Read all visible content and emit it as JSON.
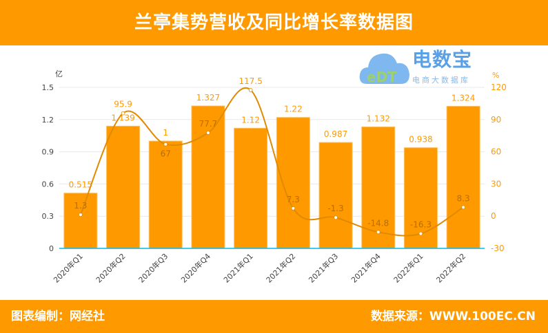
{
  "header": {
    "title": "兰亭集势营收及同比增长率数据图"
  },
  "footer": {
    "editor": "图表编制：网经社",
    "source": "数据来源：WWW.100EC.CN"
  },
  "logo": {
    "name": "电数宝",
    "subtitle": "电商大数据库",
    "mark": "eDT"
  },
  "colors": {
    "bar": "#ff9900",
    "line": "#e08a00",
    "axis": "#00b8f0",
    "header": "#ff9900"
  },
  "chart_data": {
    "type": "bar+line",
    "categories": [
      "2020年Q1",
      "2020年Q2",
      "2020年Q3",
      "2020年Q4",
      "2021年Q1",
      "2021年Q2",
      "2021年Q3",
      "2021年Q4",
      "2022年Q1",
      "2022年Q2"
    ],
    "series": [
      {
        "axis": "left",
        "type": "bar",
        "values": [
          0.515,
          1.139,
          1.0,
          1.327,
          1.12,
          1.22,
          0.987,
          1.132,
          0.938,
          1.324
        ],
        "labels": [
          "0.515",
          "1.139",
          "1",
          "1.327",
          "1.12",
          "1.22",
          "0.987",
          "1.132",
          "0.938",
          "1.324"
        ]
      },
      {
        "axis": "right",
        "type": "line",
        "values": [
          1.3,
          95.9,
          67,
          77.7,
          117.5,
          7.3,
          -1.3,
          -14.8,
          -16.3,
          8.3
        ]
      }
    ],
    "left_axis": {
      "unit": "亿",
      "ticks": [
        "0",
        "0.3",
        "0.6",
        "0.9",
        "1.2",
        "1.5"
      ],
      "range": [
        0,
        1.5
      ]
    },
    "right_axis": {
      "unit": "%",
      "ticks": [
        "-30",
        "0",
        "30",
        "60",
        "90",
        "120"
      ],
      "range": [
        -30,
        120
      ]
    },
    "grid": true
  }
}
